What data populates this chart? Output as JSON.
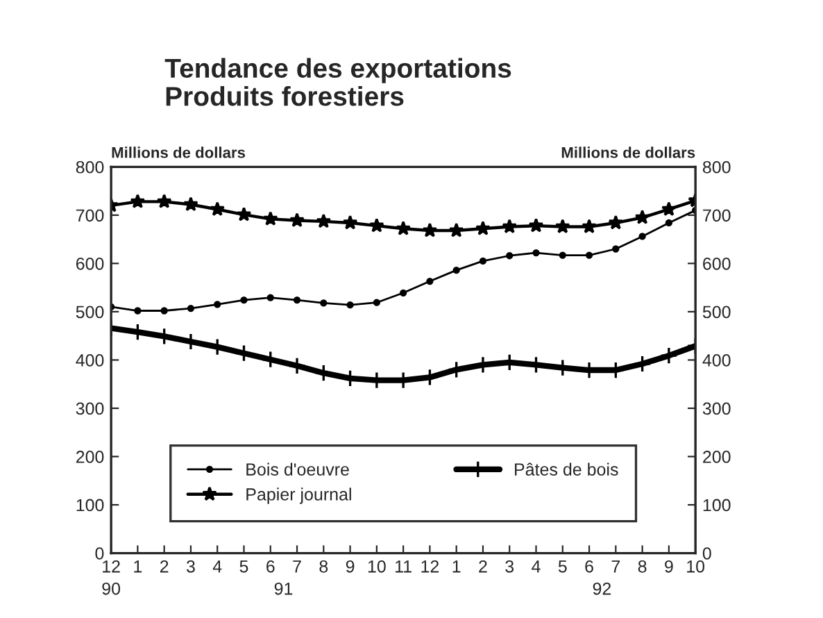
{
  "chart_data": {
    "type": "line",
    "title": "Tendance des exportations\nProduits forestiers",
    "ylabel": "Millions de dollars",
    "y2label": "Millions de dollars",
    "categories": [
      "12",
      "1",
      "2",
      "3",
      "4",
      "5",
      "6",
      "7",
      "8",
      "9",
      "10",
      "11",
      "12",
      "1",
      "2",
      "3",
      "4",
      "5",
      "6",
      "7",
      "8",
      "9",
      "10"
    ],
    "series": [
      {
        "name": "Bois d'oeuvre",
        "color": "#000000",
        "marker": "circle",
        "values": [
          510,
          502,
          502,
          507,
          515,
          524,
          529,
          524,
          518,
          514,
          519,
          539,
          563,
          586,
          605,
          616,
          622,
          617,
          617,
          630,
          656,
          684,
          710
        ]
      },
      {
        "name": "Papier journal",
        "color": "#000000",
        "marker": "star",
        "values": [
          720,
          728,
          728,
          722,
          712,
          701,
          692,
          689,
          687,
          684,
          678,
          672,
          668,
          668,
          672,
          676,
          678,
          676,
          676,
          684,
          695,
          712,
          730
        ]
      },
      {
        "name": "Pâtes de bois",
        "color": "#000000",
        "marker": "cross",
        "values": [
          466,
          458,
          449,
          438,
          427,
          414,
          401,
          388,
          373,
          362,
          358,
          358,
          364,
          380,
          390,
          395,
          390,
          384,
          379,
          379,
          392,
          409,
          429
        ]
      }
    ],
    "annotations": [
      "90",
      "91",
      "92"
    ],
    "ylim": [
      0,
      800
    ],
    "yticks": [
      0,
      100,
      200,
      300,
      400,
      500,
      600,
      700,
      800
    ],
    "y2lim": [
      0,
      800
    ],
    "y2ticks": [
      0,
      100,
      200,
      300,
      400,
      500,
      600,
      700,
      800
    ],
    "grid": false,
    "legend": "bottom",
    "line_style": "solid"
  }
}
